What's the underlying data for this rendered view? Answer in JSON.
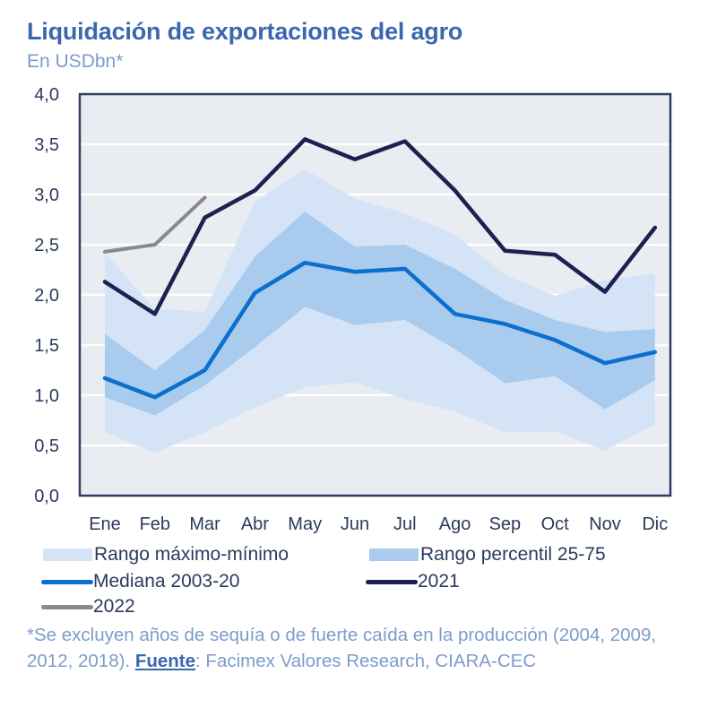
{
  "header": {
    "title": "Liquidación de exportaciones del agro",
    "subtitle": "En USDbn*"
  },
  "colors": {
    "title": "#3a67ae",
    "subtitle": "#7d9ccb",
    "plot_background": "#e9ecf1",
    "gridline": "#ffffff",
    "frame": "#2d3d63",
    "band_minmax": "#d4e4f6",
    "band_p25_75": "#a9cbee",
    "median": "#0b6fce",
    "y2021": "#1c2150",
    "y2022": "#8a8a8a",
    "axis_text": "#2c3a5c"
  },
  "chart_data": {
    "type": "line",
    "title": "Liquidación de exportaciones del agro",
    "subtitle": "En USDbn*",
    "xlabel": "",
    "ylabel": "",
    "ylim": [
      0,
      4
    ],
    "yticks": [
      0,
      0.5,
      1,
      1.5,
      2,
      2.5,
      3,
      3.5,
      4
    ],
    "ytick_labels": [
      "0,0",
      "0,5",
      "1,0",
      "1,5",
      "2,0",
      "2,5",
      "3,0",
      "3,5",
      "4,0"
    ],
    "grid": true,
    "categories": [
      "Ene",
      "Feb",
      "Mar",
      "Abr",
      "May",
      "Jun",
      "Jul",
      "Ago",
      "Sep",
      "Oct",
      "Nov",
      "Dic"
    ],
    "bands": [
      {
        "name": "Rango máximo-mínimo",
        "upper": [
          2.42,
          1.86,
          1.83,
          2.93,
          3.25,
          2.96,
          2.81,
          2.6,
          2.2,
          1.99,
          2.15,
          2.21
        ],
        "lower": [
          0.63,
          0.43,
          0.63,
          0.88,
          1.08,
          1.13,
          0.96,
          0.84,
          0.63,
          0.64,
          0.45,
          0.71
        ]
      },
      {
        "name": "Rango percentil 25-75",
        "upper": [
          1.61,
          1.25,
          1.65,
          2.38,
          2.83,
          2.48,
          2.5,
          2.26,
          1.95,
          1.75,
          1.63,
          1.66
        ],
        "lower": [
          0.98,
          0.8,
          1.1,
          1.48,
          1.88,
          1.7,
          1.75,
          1.46,
          1.12,
          1.19,
          0.86,
          1.15
        ]
      }
    ],
    "series": [
      {
        "name": "Mediana 2003-20",
        "values": [
          1.17,
          0.98,
          1.25,
          2.02,
          2.32,
          2.23,
          2.26,
          1.81,
          1.71,
          1.55,
          1.32,
          1.43
        ]
      },
      {
        "name": "2021",
        "values": [
          2.13,
          1.81,
          2.77,
          3.04,
          3.55,
          3.35,
          3.53,
          3.04,
          2.44,
          2.4,
          2.03,
          2.67
        ]
      },
      {
        "name": "2022",
        "values": [
          2.43,
          2.5,
          2.97
        ]
      }
    ],
    "legend": {
      "position": "bottom",
      "entries": [
        "Rango máximo-mínimo",
        "Rango percentil 25-75",
        "Mediana 2003-20",
        "2021",
        "2022"
      ]
    }
  },
  "legend": {
    "minmax": "Rango máximo-mínimo",
    "p25_75": "Rango percentil 25-75",
    "median": "Mediana 2003-20",
    "y2021": "2021",
    "y2022": "2022"
  },
  "footnote": {
    "line1": "*Se excluyen años de sequía o de fuerte caída en la producción (2004, 2009, 2012, 2018). ",
    "source_label": "Fuente",
    "source_text": ": Facimex Valores Research, CIARA-CEC"
  }
}
